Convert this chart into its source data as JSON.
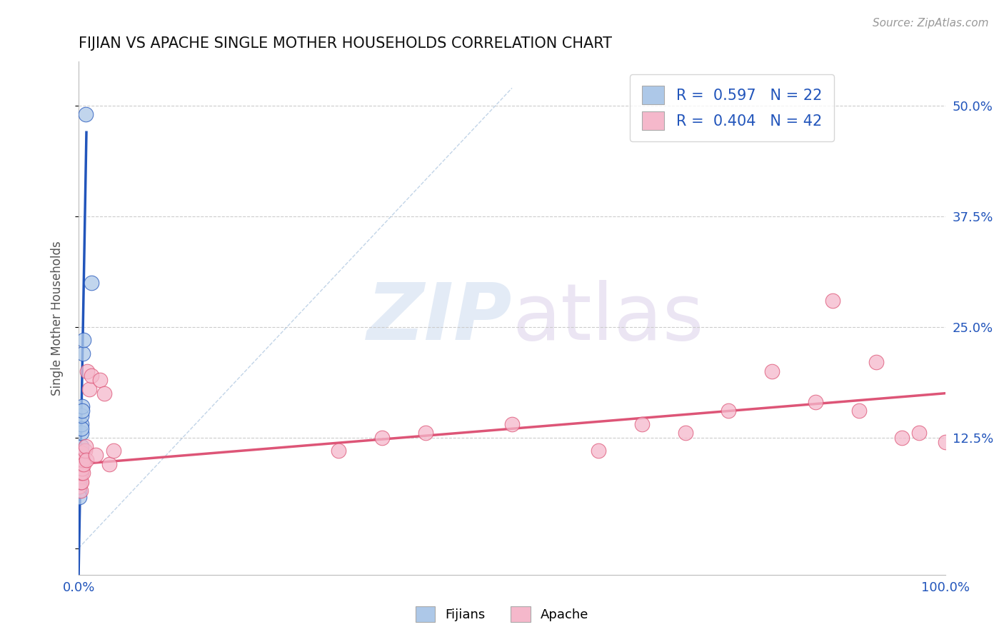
{
  "title": "FIJIAN VS APACHE SINGLE MOTHER HOUSEHOLDS CORRELATION CHART",
  "source": "Source: ZipAtlas.com",
  "ylabel": "Single Mother Households",
  "yticks": [
    0.0,
    0.125,
    0.25,
    0.375,
    0.5
  ],
  "ytick_labels": [
    "",
    "12.5%",
    "25.0%",
    "37.5%",
    "50.0%"
  ],
  "legend_r_fijian": "R =  0.597",
  "legend_n_fijian": "N = 22",
  "legend_r_apache": "R =  0.404",
  "legend_n_apache": "N = 42",
  "fijian_color": "#adc8e8",
  "apache_color": "#f5b8cb",
  "fijian_line_color": "#2255bb",
  "apache_line_color": "#dd5577",
  "fijian_x": [
    0.001,
    0.001,
    0.001,
    0.001,
    0.001,
    0.002,
    0.002,
    0.002,
    0.002,
    0.002,
    0.003,
    0.003,
    0.003,
    0.003,
    0.003,
    0.003,
    0.004,
    0.004,
    0.005,
    0.006,
    0.008,
    0.015
  ],
  "fijian_y": [
    0.065,
    0.075,
    0.07,
    0.08,
    0.058,
    0.09,
    0.095,
    0.1,
    0.105,
    0.085,
    0.11,
    0.115,
    0.13,
    0.14,
    0.135,
    0.15,
    0.16,
    0.155,
    0.22,
    0.235,
    0.49,
    0.3
  ],
  "apache_x": [
    0.001,
    0.001,
    0.002,
    0.002,
    0.002,
    0.002,
    0.003,
    0.003,
    0.003,
    0.003,
    0.004,
    0.004,
    0.005,
    0.005,
    0.006,
    0.007,
    0.008,
    0.009,
    0.01,
    0.012,
    0.015,
    0.02,
    0.025,
    0.03,
    0.035,
    0.04,
    0.3,
    0.35,
    0.4,
    0.5,
    0.6,
    0.65,
    0.7,
    0.75,
    0.8,
    0.85,
    0.87,
    0.9,
    0.92,
    0.95,
    0.97,
    1.0
  ],
  "apache_y": [
    0.07,
    0.08,
    0.065,
    0.075,
    0.09,
    0.095,
    0.075,
    0.085,
    0.1,
    0.108,
    0.09,
    0.095,
    0.085,
    0.1,
    0.095,
    0.11,
    0.115,
    0.1,
    0.2,
    0.18,
    0.195,
    0.105,
    0.19,
    0.175,
    0.095,
    0.11,
    0.11,
    0.125,
    0.13,
    0.14,
    0.11,
    0.14,
    0.13,
    0.155,
    0.2,
    0.165,
    0.28,
    0.155,
    0.21,
    0.125,
    0.13,
    0.12
  ],
  "xlim": [
    0.0,
    1.0
  ],
  "ylim": [
    -0.03,
    0.55
  ],
  "fijian_line_x": [
    0.0,
    0.009
  ],
  "fijian_line_y": [
    -0.03,
    0.47
  ],
  "apache_line_x": [
    0.0,
    1.0
  ],
  "apache_line_y": [
    0.095,
    0.175
  ],
  "dash_line_x": [
    0.0,
    0.5
  ],
  "dash_line_y": [
    0.0,
    0.52
  ]
}
